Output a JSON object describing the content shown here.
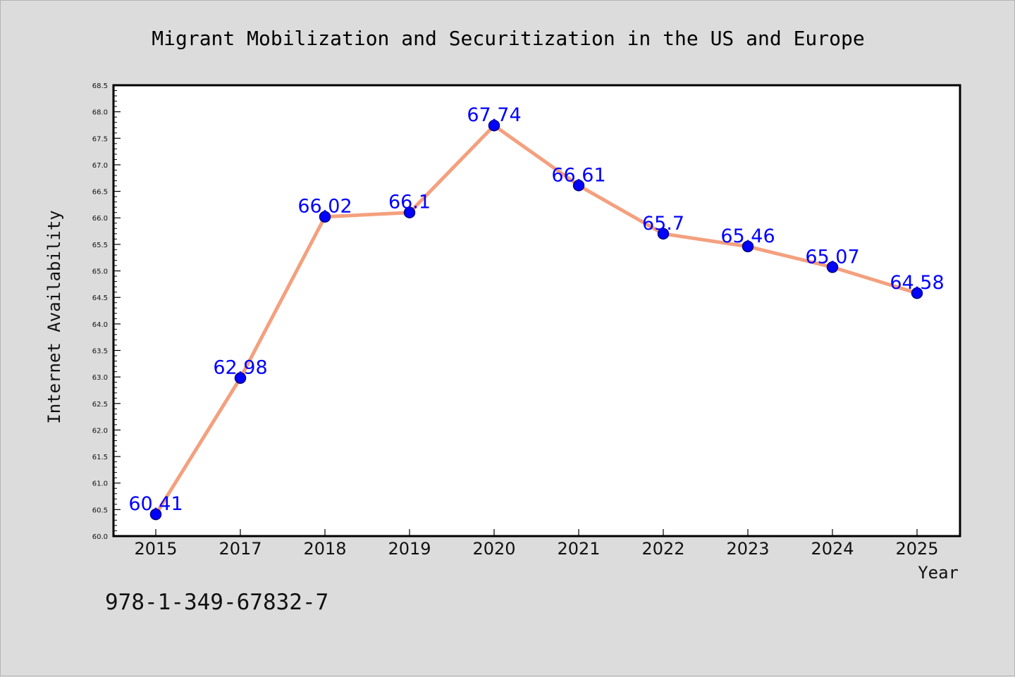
{
  "chart_data": {
    "type": "line",
    "title": "Migrant Mobilization and Securitization in the US and Europe",
    "xlabel": "Year",
    "ylabel": "Internet Availability",
    "categories": [
      "2015",
      "2017",
      "2018",
      "2019",
      "2020",
      "2021",
      "2022",
      "2023",
      "2024",
      "2025"
    ],
    "series": [
      {
        "values": [
          60.41,
          62.98,
          66.02,
          66.1,
          67.74,
          66.61,
          65.7,
          65.46,
          65.07,
          64.58
        ],
        "labels": [
          "60.41",
          "62.98",
          "66.02",
          "66.1",
          "67.74",
          "66.61",
          "65.7",
          "65.46",
          "65.07",
          "64.58"
        ]
      }
    ],
    "ylim": [
      60.0,
      68.5
    ],
    "ytick_step": 0.5,
    "grid": false,
    "legend": "none",
    "colors": {
      "line": "#f4a07e",
      "marker_fill": "#0000ff",
      "marker_edge": "#00007a",
      "data_label": "#0000ff",
      "plot_background": "#ffffff",
      "figure_background": "#dcdcdc"
    }
  },
  "footer": {
    "isbn": "978-1-349-67832-7"
  }
}
